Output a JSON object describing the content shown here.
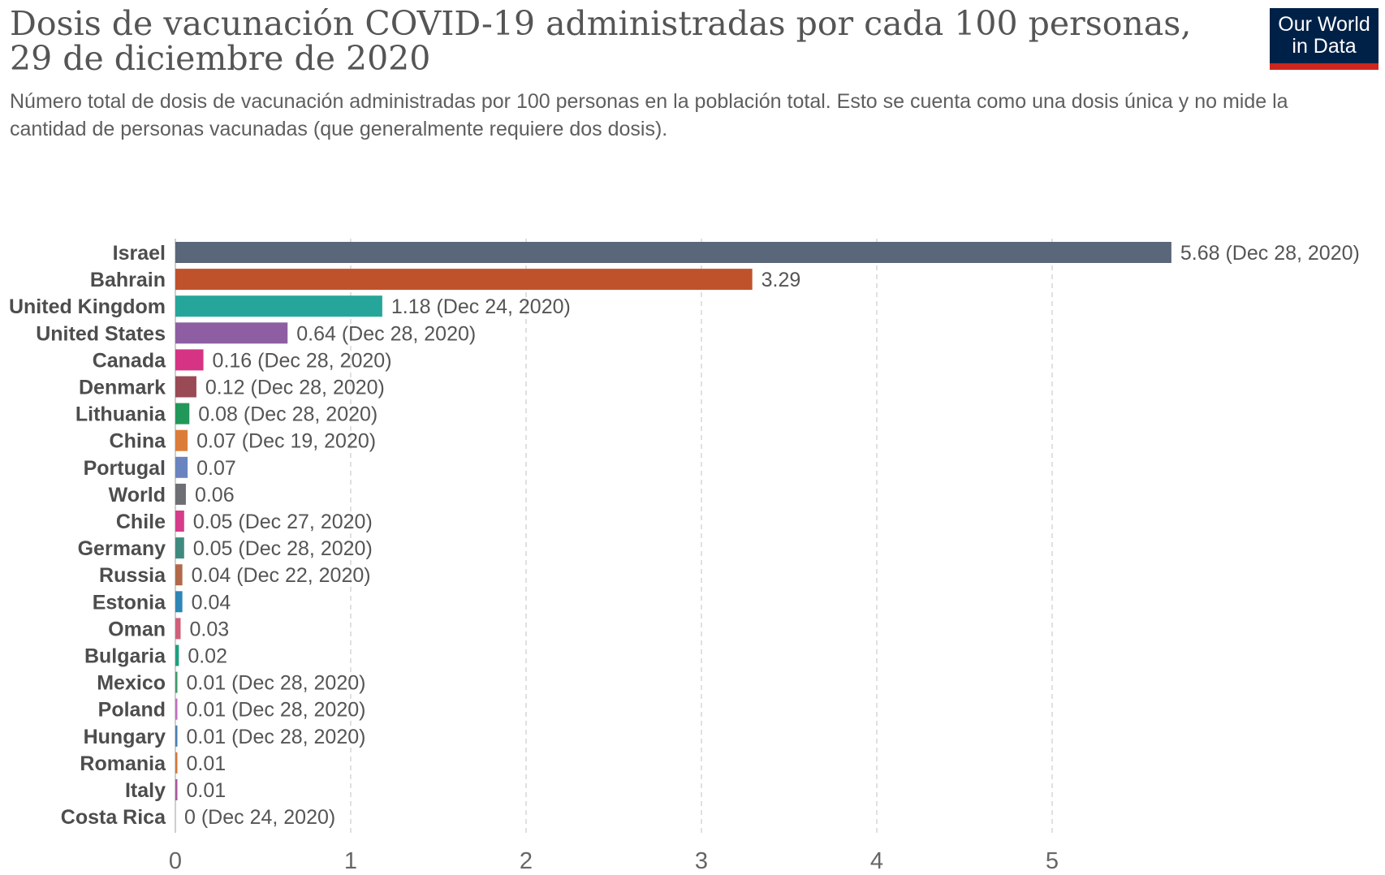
{
  "header": {
    "title": "Dosis de vacunación COVID-19 administradas por cada 100 personas, 29 de diciembre de 2020",
    "subtitle": "Número total de dosis de vacunación administradas por 100 personas en la población total. Esto se cuenta como una dosis única y no mide la cantidad de personas vacunadas (que generalmente requiere dos dosis).",
    "logo_line1": "Our World",
    "logo_line2": "in Data",
    "logo_colors": {
      "background": "#002147",
      "underline": "#ce261e"
    }
  },
  "chart_data": {
    "type": "bar",
    "orientation": "horizontal",
    "title": "Dosis de vacunación COVID-19 administradas por cada 100 personas, 29 de diciembre de 2020",
    "subtitle": "Número total de dosis de vacunación administradas por 100 personas en la población total. Esto se cuenta como una dosis única y no mide la cantidad de personas vacunadas (que generalmente requiere dos dosis).",
    "xlim": [
      0,
      5.68
    ],
    "xticks": [
      0,
      1,
      2,
      3,
      4,
      5
    ],
    "grid": "vertical dashed",
    "categories": [
      "Israel",
      "Bahrain",
      "United Kingdom",
      "United States",
      "Canada",
      "Denmark",
      "Lithuania",
      "China",
      "Portugal",
      "World",
      "Chile",
      "Germany",
      "Russia",
      "Estonia",
      "Oman",
      "Bulgaria",
      "Mexico",
      "Poland",
      "Hungary",
      "Romania",
      "Italy",
      "Costa Rica"
    ],
    "values": [
      5.68,
      3.29,
      1.18,
      0.64,
      0.16,
      0.12,
      0.08,
      0.07,
      0.07,
      0.06,
      0.05,
      0.05,
      0.04,
      0.04,
      0.03,
      0.02,
      0.01,
      0.01,
      0.01,
      0.01,
      0.01,
      0
    ],
    "value_labels": [
      "5.68 (Dec 28, 2020)",
      "3.29",
      "1.18 (Dec 24, 2020)",
      "0.64 (Dec 28, 2020)",
      "0.16 (Dec 28, 2020)",
      "0.12 (Dec 28, 2020)",
      "0.08 (Dec 28, 2020)",
      "0.07 (Dec 19, 2020)",
      "0.07",
      "0.06",
      "0.05 (Dec 27, 2020)",
      "0.05 (Dec 28, 2020)",
      "0.04 (Dec 22, 2020)",
      "0.04",
      "0.03",
      "0.02",
      "0.01 (Dec 28, 2020)",
      "0.01 (Dec 28, 2020)",
      "0.01 (Dec 28, 2020)",
      "0.01",
      "0.01",
      "0 (Dec 24, 2020)"
    ],
    "colors": [
      "#5a6679",
      "#c0522b",
      "#26a69a",
      "#8e5ea2",
      "#d63384",
      "#9a4a55",
      "#22975a",
      "#dc7c3a",
      "#6a84c0",
      "#6d6f74",
      "#d63c8a",
      "#3f8a7e",
      "#b06a4a",
      "#2e86b5",
      "#d0607a",
      "#1e9f80",
      "#3f9a6a",
      "#c070c0",
      "#4a80b0",
      "#d4783a",
      "#a85a9a",
      "#9a9a9a"
    ]
  }
}
